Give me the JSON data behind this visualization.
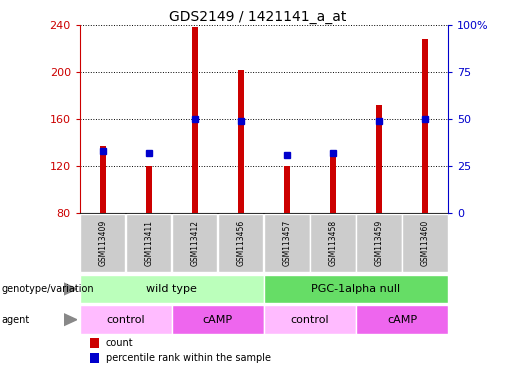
{
  "title": "GDS2149 / 1421141_a_at",
  "samples": [
    "GSM113409",
    "GSM113411",
    "GSM113412",
    "GSM113456",
    "GSM113457",
    "GSM113458",
    "GSM113459",
    "GSM113460"
  ],
  "counts": [
    137,
    120,
    238,
    202,
    120,
    132,
    172,
    228
  ],
  "percentile_ranks": [
    33,
    32,
    50,
    49,
    31,
    32,
    49,
    50
  ],
  "ymin": 80,
  "ymax": 240,
  "yticks_left": [
    80,
    120,
    160,
    200,
    240
  ],
  "yticks_right": [
    0,
    25,
    50,
    75,
    100
  ],
  "bar_color": "#cc0000",
  "marker_color": "#0000cc",
  "bar_width": 0.12,
  "genotype_groups": [
    {
      "label": "wild type",
      "span": [
        0,
        4
      ],
      "color": "#bbffbb"
    },
    {
      "label": "PGC-1alpha null",
      "span": [
        4,
        8
      ],
      "color": "#66dd66"
    }
  ],
  "agent_groups": [
    {
      "label": "control",
      "span": [
        0,
        2
      ],
      "color": "#ffbbff"
    },
    {
      "label": "cAMP",
      "span": [
        2,
        4
      ],
      "color": "#ee66ee"
    },
    {
      "label": "control",
      "span": [
        4,
        6
      ],
      "color": "#ffbbff"
    },
    {
      "label": "cAMP",
      "span": [
        6,
        8
      ],
      "color": "#ee66ee"
    }
  ],
  "legend_count_color": "#cc0000",
  "legend_pct_color": "#0000cc",
  "background_color": "#ffffff",
  "plot_bg_color": "#ffffff",
  "grid_color": "#000000",
  "tick_label_color_left": "#cc0000",
  "tick_label_color_right": "#0000cc",
  "label_box_color": "#cccccc"
}
